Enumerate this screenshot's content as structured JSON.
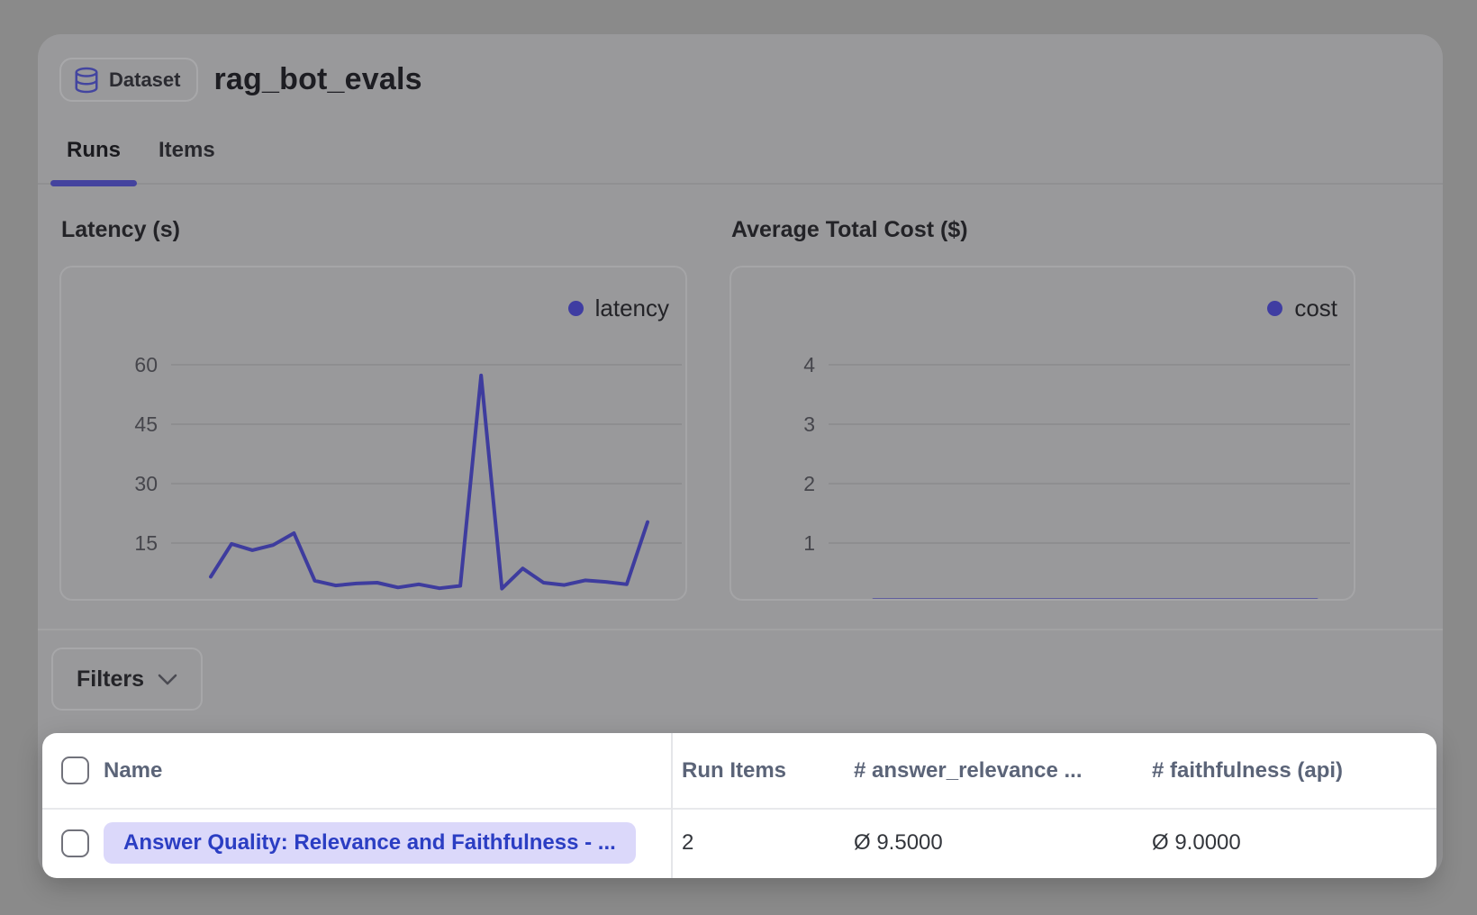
{
  "header": {
    "badge": {
      "label": "Dataset",
      "icon": "database-icon"
    },
    "title": "rag_bot_evals"
  },
  "tabs": [
    {
      "label": "Runs",
      "active": true
    },
    {
      "label": "Items",
      "active": false
    }
  ],
  "chart_data": [
    {
      "type": "line",
      "title": "Latency (s)",
      "series": [
        {
          "name": "latency",
          "values": [
            6.5,
            14.8,
            13.2,
            14.5,
            17.5,
            5.5,
            4.3,
            4.8,
            5.0,
            3.8,
            4.6,
            3.6,
            4.2,
            57.3,
            3.5,
            8.6,
            5.0,
            4.4,
            5.6,
            5.2,
            4.6,
            20.3
          ]
        }
      ],
      "yticks": [
        15,
        30,
        45,
        60
      ],
      "ylim": [
        0,
        63
      ],
      "xlabel": "",
      "ylabel": "",
      "grid": true,
      "legend_position": "top-right",
      "x_tick_labels_visible": false,
      "line_color": "#3e3c9e"
    },
    {
      "type": "line",
      "title": "Average Total Cost ($)",
      "series": [
        {
          "name": "cost",
          "values": [
            0.04,
            0.04,
            0.04,
            0.04,
            0.04,
            0.04,
            0.04,
            0.04,
            0.04,
            0.04,
            0.04,
            0.04,
            0.04,
            0.04,
            0.04,
            0.04,
            0.04,
            0.04,
            0.04,
            0.04,
            0.04,
            0.04
          ]
        }
      ],
      "yticks": [
        1,
        2,
        3,
        4
      ],
      "ylim": [
        0,
        4.6
      ],
      "xlabel": "",
      "ylabel": "",
      "grid": true,
      "legend_position": "top-right",
      "x_tick_labels_visible": false,
      "line_color": "#3e3c9e"
    }
  ],
  "filters": {
    "label": "Filters",
    "icon": "chevron-down-icon"
  },
  "table": {
    "select_all_checked": false,
    "columns": [
      "Name",
      "Run Items",
      "# answer_relevance ...",
      "# faithfulness (api)"
    ],
    "rows": [
      {
        "checked": false,
        "name": "Answer Quality: Relevance and Faithfulness - ...",
        "run_items": "2",
        "answer_relevance": "Ø 9.5000",
        "faithfulness": "Ø 9.0000"
      }
    ]
  },
  "colors": {
    "page_background": "#8a8a8a",
    "card_background": "#99999b",
    "accent_indigo": "#44439e",
    "series_line": "#3e3c9e",
    "table_background": "#ffffff",
    "name_pill_background": "#dbd8fa",
    "name_link_text": "#2b3ec3",
    "table_header_text": "#5b6478"
  }
}
